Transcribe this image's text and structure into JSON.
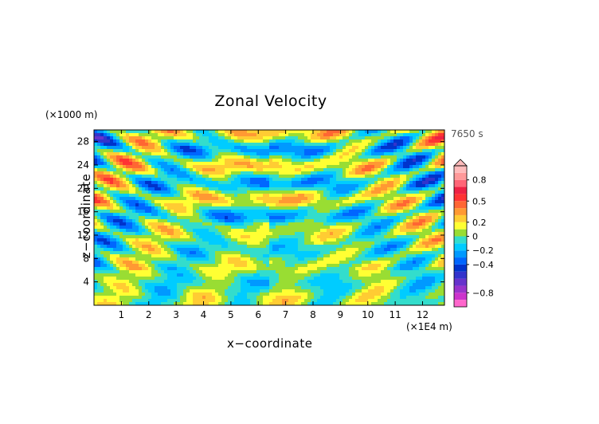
{
  "chart_data": {
    "type": "heatmap",
    "title": "Zonal Velocity",
    "xlabel": "x−coordinate",
    "ylabel": "z−coordinate",
    "x_unit": "(×1E4 m)",
    "y_unit": "(×1000 m)",
    "annotation": "7650 s",
    "x_ticks": [
      1,
      2,
      3,
      4,
      5,
      6,
      7,
      8,
      9,
      10,
      11,
      12
    ],
    "y_ticks": [
      4,
      8,
      12,
      16,
      20,
      24,
      28
    ],
    "xlim": [
      0,
      12.8
    ],
    "ylim": [
      0,
      30
    ],
    "colorbar": {
      "levels": [
        -1.0,
        -0.9,
        -0.8,
        -0.7,
        -0.6,
        -0.5,
        -0.4,
        -0.3,
        -0.2,
        -0.1,
        0,
        0.1,
        0.2,
        0.3,
        0.4,
        0.5,
        0.6,
        0.7,
        0.8,
        0.9,
        1.0
      ],
      "tick_labels": [
        "0.8",
        "0.5",
        "0.2",
        "0",
        "−0.2",
        "−0.4",
        "−0.8"
      ],
      "tick_values": [
        0.8,
        0.5,
        0.2,
        0,
        -0.2,
        -0.4,
        -0.8
      ],
      "colors": [
        "#ff66cc",
        "#cc33cc",
        "#9933cc",
        "#6633cc",
        "#3333cc",
        "#0033cc",
        "#0066ff",
        "#0099ff",
        "#00ccff",
        "#33ddcc",
        "#99dd33",
        "#ffff33",
        "#ffcc33",
        "#ff9933",
        "#ff6633",
        "#ff3333",
        "#ee2244",
        "#ff6677",
        "#ff9999",
        "#ffbbbb"
      ]
    },
    "grid": false
  }
}
